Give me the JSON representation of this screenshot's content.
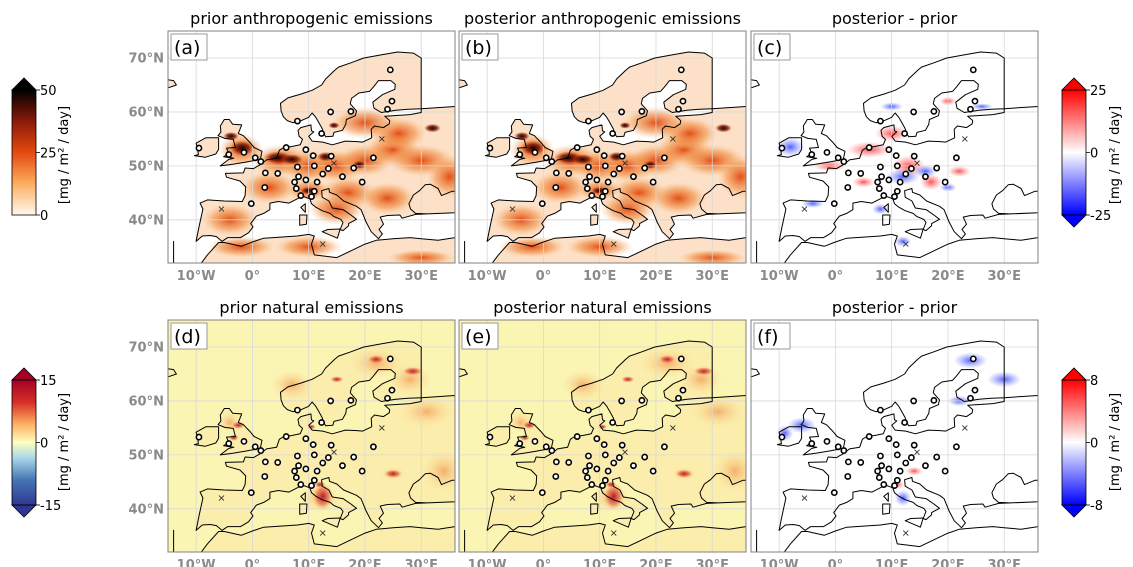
{
  "panels": [
    {
      "id": "a",
      "label": "(a)",
      "title": "prior anthropogenic emissions",
      "kind": "anthro",
      "scale": 1.0
    },
    {
      "id": "b",
      "label": "(b)",
      "title": "posterior anthropogenic emissions",
      "kind": "anthro",
      "scale": 1.0
    },
    {
      "id": "c",
      "label": "(c)",
      "title": "posterior - prior",
      "kind": "diff",
      "scale": 1.0
    },
    {
      "id": "d",
      "label": "(d)",
      "title": "prior natural emissions",
      "kind": "natural",
      "scale": 1.0
    },
    {
      "id": "e",
      "label": "(e)",
      "title": "posterior natural emissions",
      "kind": "natural",
      "scale": 1.0
    },
    {
      "id": "f",
      "label": "(f)",
      "title": "posterior - prior",
      "kind": "diff2",
      "scale": 1.0
    }
  ],
  "axes": {
    "lat_ticks": [
      "70°N",
      "60°N",
      "50°N",
      "40°N"
    ],
    "lon_ticks": [
      "10°W",
      "0°",
      "10°E",
      "20°E",
      "30°E"
    ],
    "lat_values": [
      70,
      60,
      50,
      40
    ],
    "lon_values": [
      -10,
      0,
      10,
      20,
      30
    ],
    "lon_range": [
      -15,
      36
    ],
    "lat_range": [
      32,
      75
    ],
    "grid": true
  },
  "colorbars": [
    {
      "id": "anthro",
      "ticks": [
        "50",
        "25",
        "0"
      ],
      "tick_values": [
        50,
        25,
        0
      ],
      "range": [
        0,
        50
      ],
      "label": "[mg / m² / day]",
      "colormap": "white-orange-red-black",
      "extend": "max"
    },
    {
      "id": "diff_top",
      "ticks": [
        "25",
        "0",
        "-25"
      ],
      "tick_values": [
        25,
        0,
        -25
      ],
      "range": [
        -25,
        25
      ],
      "label": "[mg / m² / day]",
      "colormap": "blue-white-red",
      "extend": "both"
    },
    {
      "id": "natural",
      "ticks": [
        "15",
        "0",
        "-15"
      ],
      "tick_values": [
        15,
        0,
        -15
      ],
      "range": [
        -15,
        15
      ],
      "label": "[mg / m² / day]",
      "colormap": "blue-cyan-yellow-red",
      "extend": "both"
    },
    {
      "id": "diff_bottom",
      "ticks": [
        "8",
        "0",
        "-8"
      ],
      "tick_values": [
        8,
        0,
        -8
      ],
      "range": [
        -8,
        8
      ],
      "label": "[mg / m² / day]",
      "colormap": "blue-white-red",
      "extend": "both"
    }
  ],
  "stations_circle": [
    [
      24.5,
      67.8
    ],
    [
      -1.5,
      52.5
    ],
    [
      -9.5,
      53.3
    ],
    [
      -4.2,
      52.1
    ],
    [
      0.5,
      51.5
    ],
    [
      1.5,
      50.8
    ],
    [
      6.0,
      53.4
    ],
    [
      8.0,
      58.3
    ],
    [
      9.5,
      53.0
    ],
    [
      12.3,
      56.0
    ],
    [
      13.9,
      60.0
    ],
    [
      17.5,
      60.1
    ],
    [
      24.0,
      60.5
    ],
    [
      24.8,
      62.0
    ],
    [
      10.8,
      51.9
    ],
    [
      13.5,
      49.5
    ],
    [
      14.0,
      51.8
    ],
    [
      11.0,
      50.0
    ],
    [
      8.0,
      49.8
    ],
    [
      8.2,
      48.0
    ],
    [
      9.5,
      47.4
    ],
    [
      7.5,
      47.0
    ],
    [
      11.5,
      47.0
    ],
    [
      12.5,
      48.5
    ],
    [
      16.0,
      48.0
    ],
    [
      18.0,
      49.6
    ],
    [
      4.5,
      48.6
    ],
    [
      2.3,
      48.7
    ],
    [
      2.2,
      46.0
    ],
    [
      7.8,
      45.8
    ],
    [
      8.6,
      44.5
    ],
    [
      10.5,
      44.3
    ],
    [
      11.0,
      45.3
    ],
    [
      -0.2,
      43.0
    ],
    [
      19.5,
      47.0
    ],
    [
      21.5,
      51.5
    ]
  ],
  "stations_cross": [
    [
      -5.5,
      42.0
    ],
    [
      12.5,
      35.5
    ],
    [
      14.5,
      50.5
    ],
    [
      23.0,
      55.0
    ]
  ]
}
